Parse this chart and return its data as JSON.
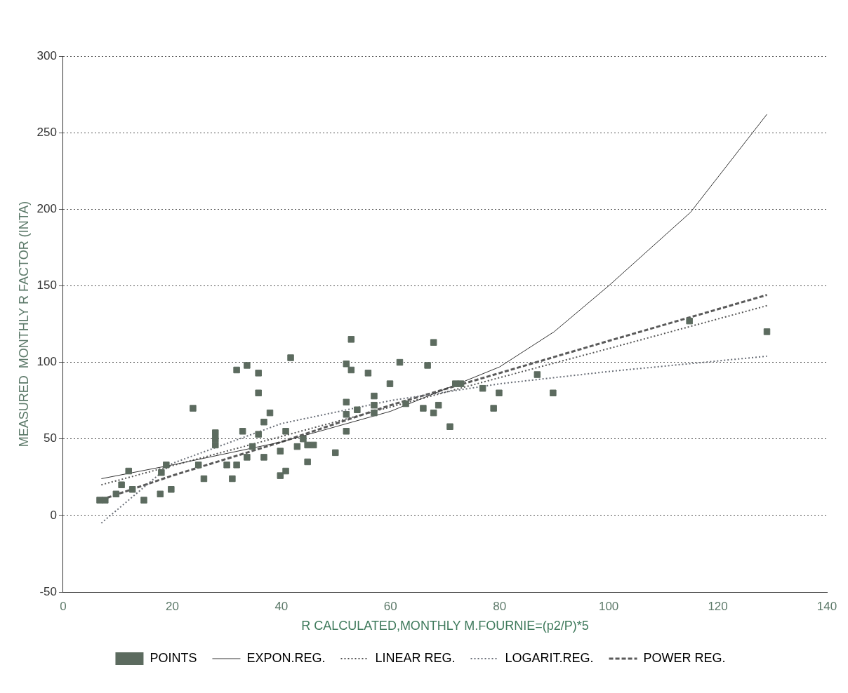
{
  "chart_data": {
    "type": "scatter",
    "xlabel": "R CALCULATED,MONTHLY M.FOURNIE=(p2/P)*5",
    "ylabel": "MEASURED  MONTHLY R FACTOR (INTA)",
    "xlim": [
      0,
      140
    ],
    "xticks": [
      0,
      20,
      40,
      60,
      80,
      100,
      120,
      140
    ],
    "ylim": [
      -50,
      300
    ],
    "yticks": [
      -50,
      0,
      50,
      100,
      150,
      200,
      250,
      300
    ],
    "grid": "y",
    "legend": "bottom",
    "series": [
      {
        "name": "POINTS",
        "marker": "square",
        "color": "#5c6b5f",
        "x": [
          6.7,
          7.7,
          9.7,
          10.7,
          12,
          12.7,
          14.8,
          17.8,
          18,
          18.9,
          19.8,
          23.8,
          24.8,
          25.8,
          27.9,
          27.9,
          27.9,
          30,
          31,
          31.8,
          31.8,
          32.9,
          33.7,
          33.7,
          34.7,
          35.8,
          35.8,
          35.8,
          36.8,
          36.8,
          37.9,
          39.8,
          39.8,
          40.8,
          40.8,
          41.7,
          42.9,
          44,
          44.8,
          44.8,
          45.9,
          49.9,
          51.9,
          51.9,
          51.9,
          51.9,
          52.8,
          52.8,
          53.9,
          55.9,
          57,
          57,
          57,
          59.9,
          61.7,
          62.8,
          66,
          66.8,
          67.9,
          67.9,
          68.8,
          70.9,
          71.9,
          72.9,
          76.9,
          78.9,
          79.9,
          86.9,
          89.8,
          114.8,
          129
        ],
        "values": [
          10,
          10,
          14,
          20,
          29,
          17,
          10,
          14,
          28,
          33,
          17,
          70,
          33,
          24,
          54,
          50,
          46,
          33,
          24,
          95,
          33,
          55,
          98,
          38,
          45,
          93,
          80,
          53,
          61,
          38,
          67,
          26,
          42,
          55,
          29,
          103,
          45,
          50,
          35,
          46,
          46,
          41,
          74,
          99,
          55,
          66,
          115,
          95,
          69,
          93,
          78,
          67,
          72,
          86,
          100,
          73,
          70,
          98,
          113,
          67,
          72,
          58,
          86,
          86,
          83,
          70,
          80,
          92,
          80,
          127,
          120
        ]
      },
      {
        "name": "EXPON.REG.",
        "type": "line",
        "marker": "none",
        "color": "#333333",
        "line_style": "solid",
        "x": [
          7,
          20,
          40,
          60,
          80,
          90,
          100,
          115,
          129
        ],
        "values": [
          24,
          33,
          48,
          68,
          97,
          120,
          150,
          198,
          262
        ]
      },
      {
        "name": "LINEAR REG.",
        "type": "line",
        "marker": "none",
        "color": "#555555",
        "line_style": "dotted",
        "x": [
          7,
          20,
          40,
          60,
          80,
          100,
          129
        ],
        "values": [
          20,
          32.5,
          51.6,
          70.8,
          90,
          109,
          137
        ]
      },
      {
        "name": "LOGARIT.REG.",
        "type": "line",
        "marker": "none",
        "color": "#6a6f78",
        "line_style": "dotted",
        "x": [
          7,
          20,
          40,
          60,
          80,
          100,
          129
        ],
        "values": [
          -5,
          34,
          60,
          75,
          86,
          94,
          104
        ]
      },
      {
        "name": "POWER REG.",
        "type": "line",
        "marker": "none",
        "color": "#5a5a5a",
        "line_style": "dashed",
        "x": [
          7,
          20,
          40,
          60,
          80,
          100,
          129
        ],
        "values": [
          10.3,
          26,
          48,
          72,
          93,
          114,
          144
        ]
      }
    ]
  }
}
